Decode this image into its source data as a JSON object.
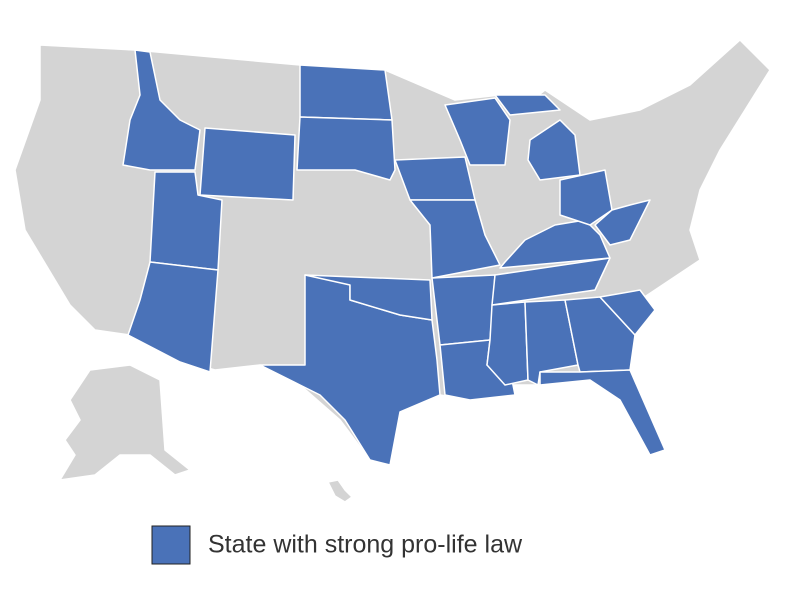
{
  "legend": {
    "label": "State with strong pro-life law",
    "color": "#4a72b8"
  },
  "map": {
    "base_color": "#d4d4d4"
  }
}
